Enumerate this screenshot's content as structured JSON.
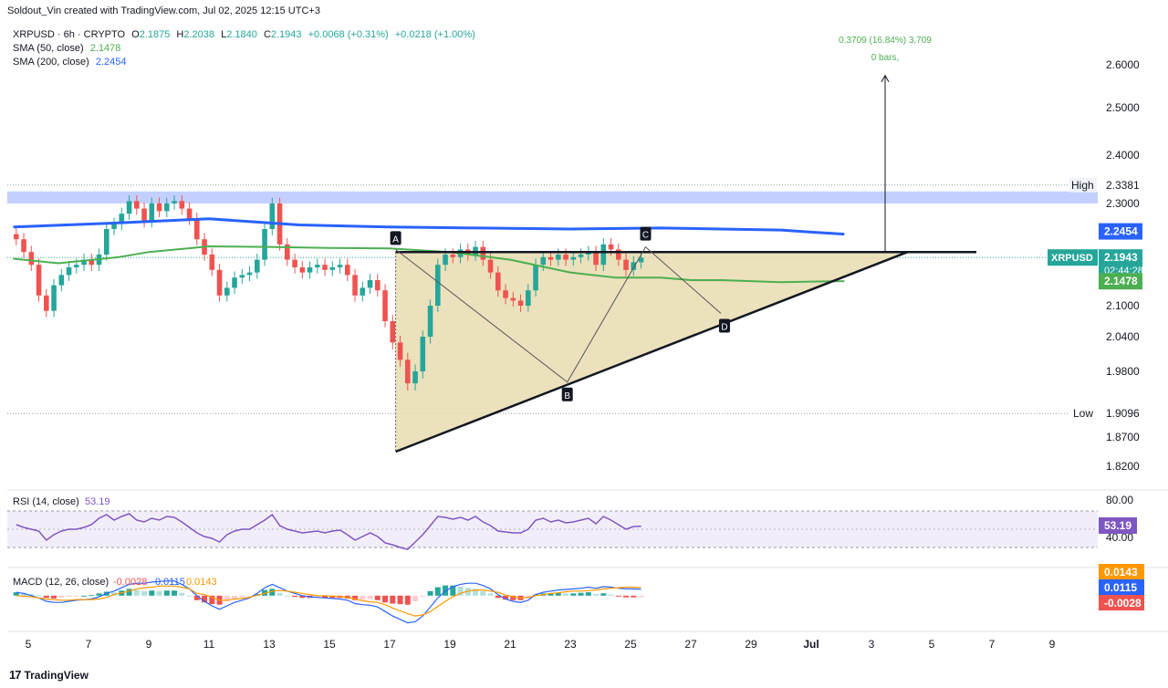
{
  "header": {
    "attribution": "Soldout_Vin created with TradingView.com, Jul 02, 2025 12:15 UTC+3"
  },
  "legend": {
    "symbol_line": "XRPUSD · 6h · CRYPTO",
    "o_label": "O",
    "o_value": "2.1875",
    "h_label": "H",
    "h_value": "2.2038",
    "l_label": "L",
    "l_value": "2.1840",
    "c_label": "C",
    "c_value": "2.1943",
    "change": "+0.0068 (+0.31%)",
    "change2": "+0.0218 (+1.00%)",
    "sma50_label": "SMA (50, close)",
    "sma50_value": "2.1478",
    "sma200_label": "SMA (200, close)",
    "sma200_value": "2.2454"
  },
  "colors": {
    "up": "#26a69a",
    "down": "#ef5350",
    "sma50": "#4caf50",
    "sma200": "#2962ff",
    "rsi": "#7e57c2",
    "macd": "#2962ff",
    "signal": "#ff9800",
    "triangle_fill": "#e8dcb0",
    "zone": "#b8c8ff"
  },
  "chart_data": [
    {
      "type": "candlestick",
      "symbol": "XRPUSD",
      "interval": "6h",
      "price_axis_ticks": [
        "2.6000",
        "2.5000",
        "2.4000",
        "2.3000",
        "2.1000",
        "2.0400",
        "1.9800",
        "1.8700",
        "1.8200"
      ],
      "x_tick_labels": [
        "5",
        "7",
        "9",
        "11",
        "13",
        "15",
        "17",
        "19",
        "21",
        "23",
        "25",
        "27",
        "29",
        "Jul",
        "3",
        "5",
        "7",
        "9"
      ],
      "x_tick_days": [
        5,
        7,
        9,
        11,
        13,
        15,
        17,
        19,
        21,
        23,
        25,
        27,
        29,
        31,
        33,
        35,
        37,
        39
      ],
      "labels": {
        "high_label": "High",
        "high_value": "2.3381",
        "low_label": "Low",
        "low_value": "1.9096",
        "sma200_tag": "2.2454",
        "symbol_tag": "XRPUSD",
        "price_tag": "2.1943",
        "countdown": "02:44:28",
        "sma50_tag": "2.1478",
        "projection_line1": "0.3709 (16.84%) 3,709",
        "projection_line2": "0 bars,",
        "points": [
          "A",
          "B",
          "C",
          "D"
        ]
      },
      "pattern_points": [
        {
          "label": "A",
          "day": 17.2,
          "price": 2.21
        },
        {
          "label": "B",
          "day": 22.9,
          "price": 1.962
        },
        {
          "label": "C",
          "day": 25.5,
          "price": 2.215
        },
        {
          "label": "D",
          "day": 28.0,
          "price": 2.085
        }
      ],
      "resistance": 2.205,
      "support_from": {
        "day": 17.2,
        "price": 1.845
      },
      "support_to": {
        "day": 34.2,
        "price": 2.205
      },
      "zone": [
        2.3,
        2.325
      ],
      "projection_from": 2.205,
      "projection_to": 2.575,
      "sma200": [
        [
          4.5,
          2.254
        ],
        [
          8,
          2.262
        ],
        [
          11,
          2.27
        ],
        [
          14,
          2.258
        ],
        [
          17,
          2.254
        ],
        [
          20,
          2.252
        ],
        [
          23,
          2.25
        ],
        [
          26,
          2.252
        ],
        [
          28,
          2.25
        ],
        [
          30,
          2.248
        ],
        [
          31,
          2.244
        ],
        [
          32.1,
          2.24
        ]
      ],
      "sma50": [
        [
          4.5,
          2.192
        ],
        [
          6,
          2.183
        ],
        [
          8,
          2.195
        ],
        [
          9,
          2.205
        ],
        [
          11,
          2.216
        ],
        [
          13,
          2.215
        ],
        [
          15,
          2.213
        ],
        [
          17,
          2.212
        ],
        [
          19,
          2.205
        ],
        [
          21,
          2.19
        ],
        [
          23,
          2.165
        ],
        [
          24.5,
          2.155
        ],
        [
          26,
          2.155
        ],
        [
          27,
          2.15
        ],
        [
          28,
          2.15
        ],
        [
          30,
          2.146
        ],
        [
          32.1,
          2.148
        ]
      ],
      "candles_6h_closes": [
        2.23,
        2.205,
        2.18,
        2.12,
        2.09,
        2.14,
        2.16,
        2.175,
        2.18,
        2.19,
        2.18,
        2.2,
        2.25,
        2.26,
        2.28,
        2.305,
        2.29,
        2.265,
        2.3,
        2.285,
        2.3,
        2.305,
        2.29,
        2.27,
        2.23,
        2.2,
        2.17,
        2.12,
        2.135,
        2.155,
        2.16,
        2.165,
        2.19,
        2.25,
        2.3,
        2.22,
        2.19,
        2.175,
        2.165,
        2.175,
        2.18,
        2.17,
        2.175,
        2.18,
        2.16,
        2.12,
        2.135,
        2.15,
        2.13,
        2.07,
        2.03,
        2.0,
        1.96,
        1.98,
        2.04,
        2.1,
        2.18,
        2.2,
        2.195,
        2.21,
        2.2,
        2.215,
        2.19,
        2.165,
        2.13,
        2.115,
        2.11,
        2.1,
        2.13,
        2.18,
        2.195,
        2.19,
        2.2,
        2.19,
        2.195,
        2.2,
        2.205,
        2.18,
        2.22,
        2.21,
        2.19,
        2.17,
        2.185,
        2.194
      ]
    },
    {
      "type": "line",
      "name": "RSI (14, close)",
      "title": "RSI (14, close)",
      "value_label": "53.19",
      "axis_ticks": [
        "80.00",
        "40.00"
      ],
      "ylim": [
        20,
        90
      ],
      "band": [
        30,
        70
      ],
      "values": [
        55,
        52,
        50,
        48,
        38,
        44,
        48,
        50,
        50,
        52,
        55,
        62,
        66,
        60,
        64,
        67,
        60,
        58,
        62,
        60,
        64,
        63,
        58,
        52,
        46,
        42,
        40,
        36,
        44,
        48,
        50,
        50,
        55,
        60,
        66,
        54,
        50,
        48,
        46,
        47,
        48,
        46,
        48,
        49,
        44,
        38,
        42,
        46,
        42,
        35,
        33,
        30,
        28,
        36,
        44,
        54,
        64,
        63,
        61,
        63,
        60,
        64,
        58,
        54,
        48,
        47,
        46,
        46,
        50,
        60,
        62,
        58,
        60,
        57,
        58,
        60,
        62,
        56,
        64,
        60,
        55,
        50,
        53,
        53.19
      ]
    },
    {
      "type": "bar+line",
      "name": "MACD (12, 26, close)",
      "title": "MACD (12, 26, close)",
      "values_label": [
        "-0.0028",
        "0.0115",
        "0.0143"
      ],
      "ylim": [
        -0.06,
        0.04
      ],
      "histogram": [
        0.006,
        0.005,
        0.003,
        0.001,
        -0.004,
        -0.005,
        -0.004,
        -0.002,
        -0.001,
        0.0,
        0.001,
        0.004,
        0.007,
        0.006,
        0.009,
        0.012,
        0.01,
        0.008,
        0.009,
        0.008,
        0.009,
        0.009,
        0.005,
        0.0,
        -0.008,
        -0.012,
        -0.015,
        -0.016,
        -0.01,
        -0.006,
        -0.003,
        -0.001,
        0.003,
        0.01,
        0.012,
        0.005,
        0.0,
        -0.002,
        -0.004,
        -0.004,
        -0.003,
        -0.004,
        -0.004,
        -0.004,
        -0.005,
        -0.008,
        -0.007,
        -0.006,
        -0.008,
        -0.012,
        -0.014,
        -0.015,
        -0.016,
        -0.01,
        -0.002,
        0.008,
        0.015,
        0.018,
        0.018,
        0.016,
        0.014,
        0.012,
        0.008,
        0.004,
        -0.004,
        -0.007,
        -0.008,
        -0.008,
        -0.005,
        0.002,
        0.004,
        0.004,
        0.005,
        0.004,
        0.004,
        0.005,
        0.006,
        0.003,
        0.004,
        0.002,
        -0.001,
        -0.003,
        -0.003,
        -0.0028
      ],
      "macd": [
        0.006,
        0.004,
        0.0,
        -0.004,
        -0.01,
        -0.012,
        -0.012,
        -0.01,
        -0.008,
        -0.007,
        -0.006,
        -0.002,
        0.004,
        0.008,
        0.014,
        0.02,
        0.022,
        0.022,
        0.024,
        0.025,
        0.026,
        0.026,
        0.02,
        0.012,
        0.0,
        -0.01,
        -0.018,
        -0.024,
        -0.018,
        -0.012,
        -0.008,
        -0.004,
        0.004,
        0.014,
        0.02,
        0.014,
        0.008,
        0.004,
        0.0,
        -0.002,
        -0.003,
        -0.004,
        -0.005,
        -0.006,
        -0.008,
        -0.014,
        -0.016,
        -0.017,
        -0.02,
        -0.028,
        -0.036,
        -0.042,
        -0.048,
        -0.046,
        -0.036,
        -0.02,
        -0.004,
        0.008,
        0.016,
        0.02,
        0.022,
        0.022,
        0.018,
        0.012,
        0.002,
        -0.006,
        -0.01,
        -0.012,
        -0.008,
        0.002,
        0.006,
        0.008,
        0.01,
        0.011,
        0.012,
        0.013,
        0.015,
        0.013,
        0.016,
        0.015,
        0.013,
        0.012,
        0.012,
        0.0115
      ],
      "signal": [
        0.0,
        -0.001,
        -0.002,
        -0.004,
        -0.006,
        -0.007,
        -0.008,
        -0.008,
        -0.007,
        -0.007,
        -0.007,
        -0.006,
        -0.003,
        0.002,
        0.005,
        0.008,
        0.012,
        0.014,
        0.015,
        0.017,
        0.017,
        0.017,
        0.015,
        0.012,
        0.004,
        0.002,
        -0.003,
        -0.008,
        -0.008,
        -0.006,
        -0.005,
        -0.003,
        0.001,
        0.004,
        0.008,
        0.009,
        0.008,
        0.006,
        0.004,
        0.002,
        0.0,
        0.0,
        -0.001,
        -0.002,
        -0.003,
        -0.006,
        -0.009,
        -0.011,
        -0.012,
        -0.016,
        -0.022,
        -0.027,
        -0.032,
        -0.036,
        -0.034,
        -0.028,
        -0.019,
        -0.01,
        -0.002,
        0.004,
        0.008,
        0.01,
        0.01,
        0.008,
        0.006,
        0.001,
        -0.002,
        -0.004,
        -0.003,
        0.0,
        0.002,
        0.004,
        0.005,
        0.007,
        0.008,
        0.008,
        0.009,
        0.01,
        0.012,
        0.013,
        0.014,
        0.015,
        0.015,
        0.0143
      ]
    }
  ],
  "footer": {
    "brand": "TradingView"
  }
}
